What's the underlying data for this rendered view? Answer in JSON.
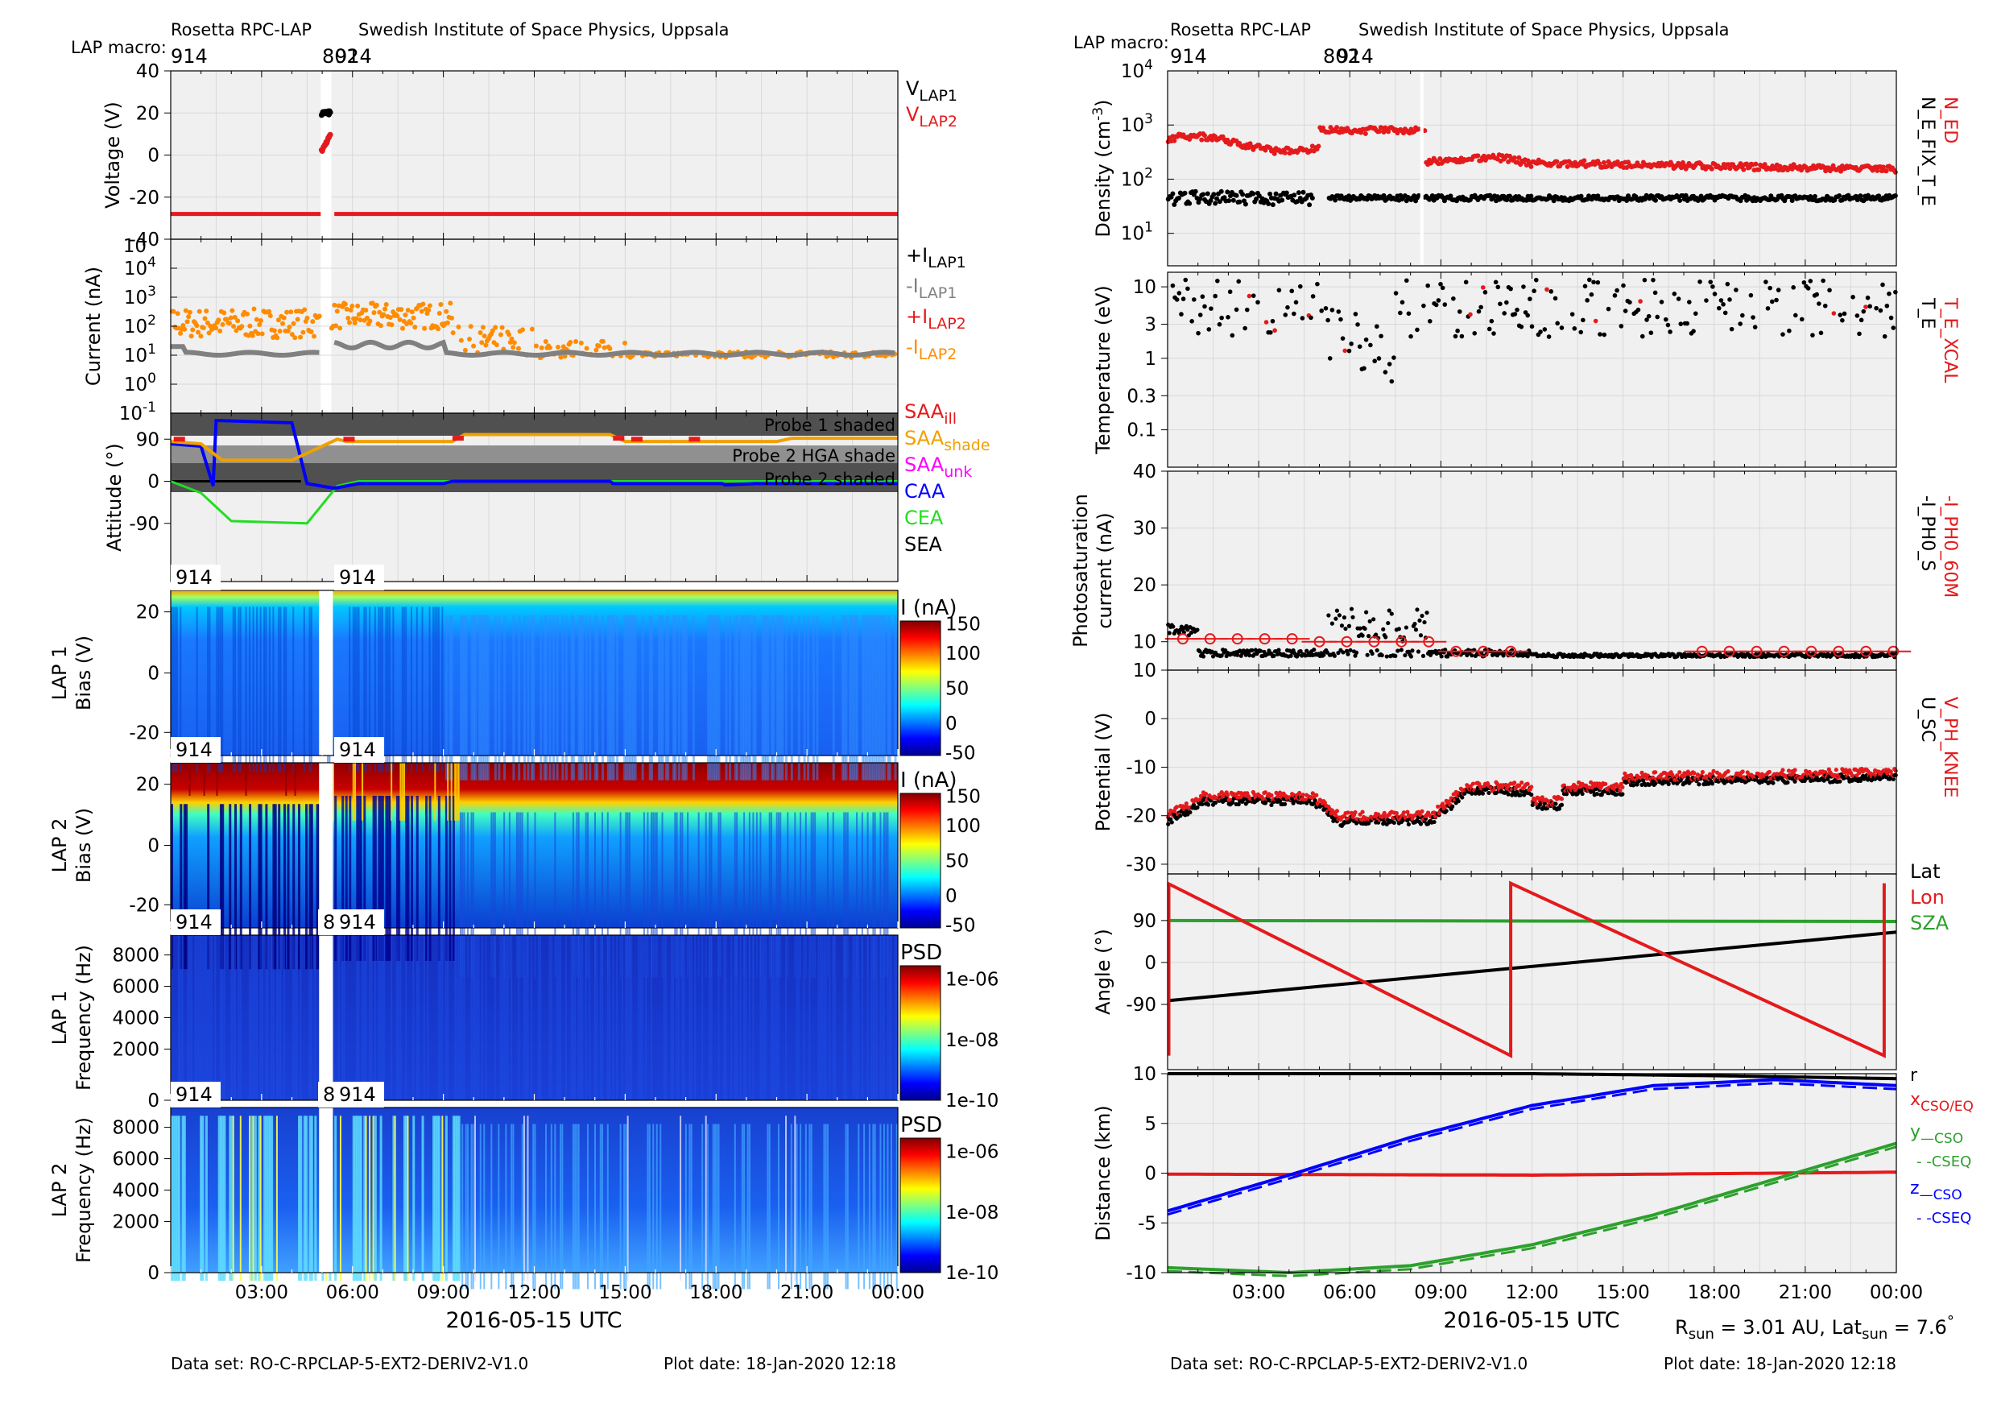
{
  "header": {
    "institution_left": "Rosetta RPC-LAP",
    "institution_right": "Swedish Institute of Space Physics, Uppsala",
    "macro_label": "LAP macro:",
    "macro_values": [
      "914",
      "802",
      "914"
    ]
  },
  "footer": {
    "dataset": "Data set: RO-C-RPCLAP-5-EXT2-DERIV2-V1.0",
    "plot_date": "Plot date: 18-Jan-2020 12:18",
    "x_axis_title": "2016-05-15 UTC",
    "rsun_text": "R",
    "rsun_sub": "sun",
    "rsun_value": " = 3.01 AU, Lat",
    "lat_sub": "sun",
    "lat_value": " = 7.6",
    "lat_unit": "°"
  },
  "colors": {
    "red": "#e41a1c",
    "orange": "#ff8c00",
    "gray": "#808080",
    "black": "#000000",
    "blue": "#0000ff",
    "green": "#2ca02c",
    "bright_green": "#22dd22",
    "magenta": "#ff00ff",
    "amber": "#f0a000",
    "panel_bg": "#f0f0f0"
  },
  "chart_data": [
    {
      "id": "voltage",
      "type": "scatter",
      "ylabel": "Voltage (V)",
      "yticks": [
        "40",
        "20",
        "0",
        "-20",
        "-40"
      ],
      "ylim": [
        -40,
        40
      ],
      "legend": [
        {
          "base": "V",
          "sub": "LAP1",
          "color": "#000000"
        },
        {
          "base": "V",
          "sub": "LAP2",
          "color": "#e41a1c"
        }
      ],
      "series": [
        {
          "name": "V LAP2 baseline",
          "color": "#e41a1c",
          "value": -28
        },
        {
          "name": "V LAP1 burst",
          "color": "#000000",
          "values_range": [
            19,
            21
          ]
        },
        {
          "name": "V LAP2 burst",
          "color": "#e41a1c",
          "values_range": [
            1,
            10
          ]
        }
      ]
    },
    {
      "id": "current",
      "type": "scatter",
      "ylabel": "Current (nA)",
      "yscale": "log",
      "yticks": [
        {
          "b": "10",
          "e": "4"
        },
        {
          "b": "10",
          "e": "3"
        },
        {
          "b": "10",
          "e": "2"
        },
        {
          "b": "10",
          "e": "1"
        },
        {
          "b": "10",
          "e": "0"
        },
        {
          "b": "10",
          "e": "-1"
        }
      ],
      "ytick_extra": "10",
      "legend": [
        {
          "base": "+I",
          "sub": "LAP1",
          "color": "#000000"
        },
        {
          "base": "-I",
          "sub": "LAP1",
          "color": "#808080"
        },
        {
          "base": "+I",
          "sub": "LAP2",
          "color": "#e41a1c"
        },
        {
          "base": "-I",
          "sub": "LAP2",
          "color": "#ff8c00"
        }
      ],
      "series": [
        {
          "name": "-I LAP2",
          "color": "#ff8c00",
          "typical": [
            100,
            300
          ]
        },
        {
          "name": "-I LAP1",
          "color": "#808080",
          "typical": 10
        }
      ]
    },
    {
      "id": "attitude",
      "type": "line",
      "ylabel": "Attitude (°)",
      "yticks": [
        "90",
        "0",
        "-90"
      ],
      "shade_labels": [
        "Probe 1 shaded",
        "Probe 2 HGA shade",
        "Probe 2 shaded"
      ],
      "legend": [
        {
          "base": "SAA",
          "sub": "ill",
          "color": "#e41a1c"
        },
        {
          "base": "SAA",
          "sub": "shade",
          "color": "#f0a000"
        },
        {
          "base": "SAA",
          "sub": "unk",
          "color": "#ff00ff"
        },
        {
          "base": "CAA",
          "sub": "",
          "color": "#0000ff"
        },
        {
          "base": "CEA",
          "sub": "",
          "color": "#22dd22"
        },
        {
          "base": "SEA",
          "sub": "",
          "color": "#000000"
        }
      ]
    },
    {
      "id": "lap1_bias",
      "type": "heatmap",
      "ylabel": [
        "LAP 1",
        "Bias (V)"
      ],
      "yticks": [
        "20",
        "0",
        "-20"
      ],
      "macro_tags": [
        "914",
        "914"
      ],
      "colorbar": {
        "title": "I (nA)",
        "ticks": [
          "150",
          "100",
          "50",
          "0",
          "-50"
        ]
      }
    },
    {
      "id": "lap2_bias",
      "type": "heatmap",
      "ylabel": [
        "LAP 2",
        "Bias (V)"
      ],
      "yticks": [
        "20",
        "0",
        "-20"
      ],
      "macro_tags": [
        "914",
        "914"
      ],
      "colorbar": {
        "title": "I (nA)",
        "ticks": [
          "150",
          "100",
          "50",
          "0",
          "-50"
        ]
      }
    },
    {
      "id": "lap1_psd",
      "type": "heatmap",
      "ylabel": [
        "LAP 1",
        "Frequency (Hz)"
      ],
      "yticks": [
        "8000",
        "6000",
        "4000",
        "2000",
        "0"
      ],
      "macro_tags": [
        "914",
        "8",
        "914"
      ],
      "colorbar": {
        "title": "PSD",
        "ticks": [
          "1e-06",
          "1e-08",
          "1e-10"
        ]
      }
    },
    {
      "id": "lap2_psd",
      "type": "heatmap",
      "ylabel": [
        "LAP 2",
        "Frequency (Hz)"
      ],
      "yticks": [
        "8000",
        "6000",
        "4000",
        "2000",
        "0"
      ],
      "macro_tags": [
        "914",
        "8",
        "914"
      ],
      "colorbar": {
        "title": "PSD",
        "ticks": [
          "1e-06",
          "1e-08",
          "1e-10"
        ]
      }
    },
    {
      "id": "density",
      "type": "scatter",
      "ylabel": "Density (cm",
      "ylabel_sup": "-3",
      "ylabel_end": ")",
      "yscale": "log",
      "yticks": [
        {
          "b": "10",
          "e": "4"
        },
        {
          "b": "10",
          "e": "3"
        },
        {
          "b": "10",
          "e": "2"
        },
        {
          "b": "10",
          "e": "1"
        }
      ],
      "right_labels": [
        {
          "text": "N_ED",
          "color": "#e41a1c"
        },
        {
          "text": "N_E_FIX_T_E",
          "color": "#000000"
        }
      ],
      "series": [
        {
          "name": "N_ED",
          "color": "#e41a1c",
          "typical": [
            150,
            800
          ]
        },
        {
          "name": "N_E_FIX_T_E",
          "color": "#000000",
          "typical": 50
        }
      ]
    },
    {
      "id": "temperature",
      "type": "scatter",
      "ylabel": "Temperature (eV)",
      "yscale": "log",
      "yticks": [
        "10",
        "3",
        "1",
        "0.3",
        "0.1"
      ],
      "right_labels": [
        {
          "text": "T_E_XCAL",
          "color": "#e41a1c"
        },
        {
          "text": "T_E",
          "color": "#000000"
        }
      ],
      "series": [
        {
          "name": "T_E",
          "color": "#000000",
          "typical": [
            1,
            15
          ]
        },
        {
          "name": "T_E_XCAL",
          "color": "#e41a1c",
          "typical": [
            3,
            15
          ]
        }
      ]
    },
    {
      "id": "photosat",
      "type": "scatter",
      "ylabel": [
        "Photosaturation",
        "current (nA)"
      ],
      "yticks": [
        "40",
        "30",
        "20",
        "10"
      ],
      "ylim": [
        5,
        40
      ],
      "right_labels": [
        {
          "text": "-I_PH0_60M",
          "color": "#e41a1c"
        },
        {
          "text": "-I_PH0_S",
          "color": "#000000"
        }
      ],
      "series": [
        {
          "name": "-I_PH0_S",
          "color": "#000000",
          "typical": [
            8,
            15
          ]
        },
        {
          "name": "-I_PH0_60M",
          "color": "#e41a1c",
          "typical": [
            7,
            12
          ]
        }
      ]
    },
    {
      "id": "potential",
      "type": "scatter",
      "ylabel": "Potential (V)",
      "yticks": [
        "10",
        "0",
        "-10",
        "-20",
        "-30"
      ],
      "ylim": [
        -32,
        10
      ],
      "right_labels": [
        {
          "text": "V_PH_KNEE",
          "color": "#e41a1c"
        },
        {
          "text": "U_SC",
          "color": "#000000"
        }
      ],
      "series": [
        {
          "name": "U_SC",
          "color": "#000000",
          "typical": [
            -22,
            -10
          ]
        },
        {
          "name": "V_PH_KNEE",
          "color": "#e41a1c",
          "typical": [
            -20,
            -9
          ]
        }
      ]
    },
    {
      "id": "angle",
      "type": "line",
      "ylabel": "Angle (°)",
      "yticks": [
        "90",
        "0",
        "-90"
      ],
      "legend": [
        {
          "base": "Lat",
          "sub": "",
          "color": "#000000"
        },
        {
          "base": "Lon",
          "sub": "",
          "color": "#e41a1c"
        },
        {
          "base": "SZA",
          "sub": "",
          "color": "#2ca02c"
        }
      ],
      "series": [
        {
          "name": "Lat",
          "color": "#000000",
          "x": [
            0,
            24
          ],
          "y": [
            -82,
            65
          ]
        },
        {
          "name": "SZA",
          "color": "#2ca02c",
          "x": [
            0,
            24
          ],
          "y": [
            90,
            88
          ]
        },
        {
          "name": "Lon",
          "color": "#e41a1c",
          "x": [
            0,
            11.3,
            11.3,
            23.6,
            23.6
          ],
          "y": [
            170,
            -200,
            170,
            -200,
            170
          ]
        }
      ]
    },
    {
      "id": "distance",
      "type": "line",
      "ylabel": "Distance (km)",
      "yticks": [
        "10",
        "5",
        "0",
        "-5",
        "-10"
      ],
      "ylim": [
        -10,
        10
      ],
      "legend": [
        {
          "base": "r",
          "sub": "",
          "color": "#000000"
        },
        {
          "base": "x",
          "sub": "CSO/EQ",
          "color": "#e41a1c"
        },
        {
          "base": "y",
          "sub": "—CSO",
          "color": "#2ca02c"
        },
        {
          "base": "",
          "sub": "- -CSEQ",
          "color": "#2ca02c"
        },
        {
          "base": "z",
          "sub": "—CSO",
          "color": "#0000ff"
        },
        {
          "base": "",
          "sub": "- -CSEQ",
          "color": "#0000ff"
        }
      ],
      "series": [
        {
          "name": "r",
          "color": "#000000",
          "x": [
            0,
            6,
            12,
            18,
            24
          ],
          "y": [
            10,
            10,
            10,
            9.8,
            9.5
          ]
        },
        {
          "name": "x",
          "color": "#e41a1c",
          "x": [
            0,
            12,
            24
          ],
          "y": [
            -0.1,
            -0.2,
            0.1
          ]
        },
        {
          "name": "y CSO",
          "color": "#2ca02c",
          "x": [
            0,
            4,
            8,
            12,
            16,
            20,
            24
          ],
          "y": [
            -9.5,
            -10,
            -9.3,
            -7.2,
            -4.2,
            -0.6,
            3.0
          ]
        },
        {
          "name": "z CSO",
          "color": "#0000ff",
          "x": [
            0,
            4,
            8,
            12,
            16,
            20,
            24
          ],
          "y": [
            -3.8,
            -0.2,
            3.6,
            6.8,
            8.8,
            9.4,
            8.8
          ]
        }
      ]
    }
  ],
  "time_axis": {
    "ticks": [
      "03:00",
      "06:00",
      "09:00",
      "12:00",
      "15:00",
      "18:00",
      "21:00",
      "00:00"
    ]
  }
}
